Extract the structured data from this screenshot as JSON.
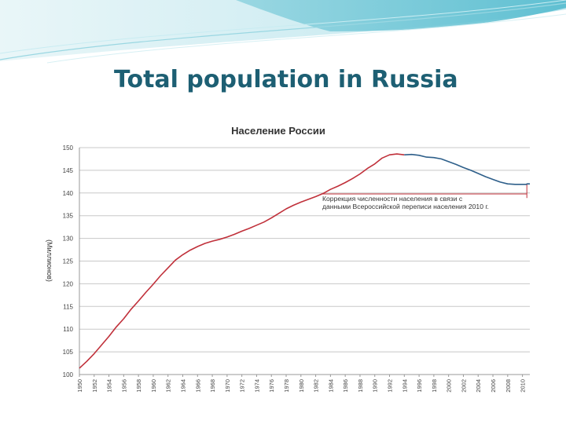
{
  "slide": {
    "title": "Total population in Russia"
  },
  "colors": {
    "title": "#1d5f73",
    "series_before": "#c0303a",
    "series_after": "#2e5f8a",
    "grid": "#c8c8c8"
  },
  "chart_data": {
    "type": "line",
    "title": "Население России",
    "xlabel": "",
    "ylabel": "(Миллионов)",
    "xlim": [
      1950,
      2011
    ],
    "ylim": [
      100,
      150
    ],
    "yticks": [
      100,
      105,
      110,
      115,
      120,
      125,
      130,
      135,
      140,
      145,
      150
    ],
    "xticks": [
      1950,
      1952,
      1954,
      1956,
      1958,
      1960,
      1962,
      1964,
      1966,
      1968,
      1970,
      1972,
      1974,
      1976,
      1978,
      1980,
      1982,
      1984,
      1986,
      1988,
      1990,
      1992,
      1994,
      1996,
      1998,
      2000,
      2002,
      2004,
      2006,
      2008,
      2010
    ],
    "grid": true,
    "legend": "none",
    "annotation": {
      "lines": [
        "Коррекция численности населения в связи с",
        "данными Всероссийской переписи населения 2010 г."
      ],
      "x": 2010.6,
      "y": 142.0
    },
    "series": [
      {
        "x": [
          1950,
          1951,
          1952,
          1953,
          1954,
          1955,
          1956,
          1957,
          1958,
          1959,
          1960,
          1961,
          1962,
          1963,
          1964,
          1965,
          1966,
          1967,
          1968,
          1969,
          1970,
          1971,
          1972,
          1973,
          1974,
          1975,
          1976,
          1977,
          1978,
          1979,
          1980,
          1981,
          1982,
          1983,
          1984,
          1985,
          1986,
          1987,
          1988,
          1989,
          1990,
          1991,
          1992,
          1993,
          1994
        ],
        "y": [
          101.4,
          102.9,
          104.6,
          106.5,
          108.4,
          110.5,
          112.3,
          114.4,
          116.2,
          118.1,
          119.9,
          121.8,
          123.5,
          125.2,
          126.4,
          127.4,
          128.2,
          128.9,
          129.4,
          129.8,
          130.3,
          130.9,
          131.6,
          132.2,
          132.9,
          133.6,
          134.5,
          135.5,
          136.5,
          137.3,
          138.0,
          138.6,
          139.2,
          139.9,
          140.8,
          141.5,
          142.3,
          143.2,
          144.2,
          145.4,
          146.4,
          147.7,
          148.4,
          148.6,
          148.4
        ]
      },
      {
        "x": [
          1994,
          1995,
          1996,
          1997,
          1998,
          1999,
          2000,
          2001,
          2002,
          2003,
          2004,
          2005,
          2006,
          2007,
          2008,
          2009,
          2010,
          2010.6,
          2010.6,
          2011
        ],
        "y": [
          148.4,
          148.5,
          148.3,
          147.9,
          147.8,
          147.5,
          146.9,
          146.3,
          145.6,
          145.0,
          144.3,
          143.6,
          143.0,
          142.4,
          142.0,
          141.9,
          141.9,
          141.9,
          142.0,
          142.0
        ]
      }
    ]
  }
}
